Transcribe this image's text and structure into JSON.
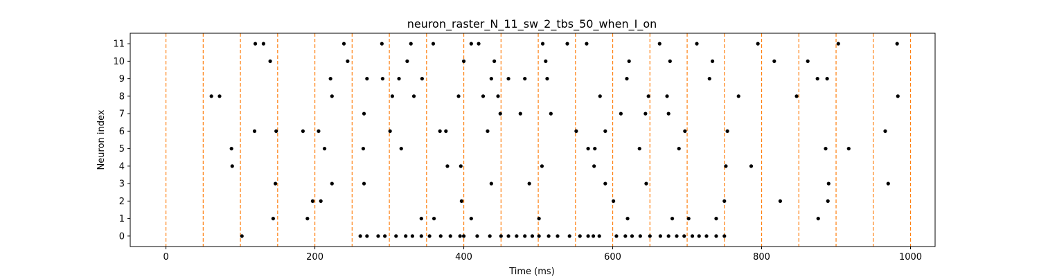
{
  "chart_data": {
    "type": "scatter",
    "title": "neuron_raster_N_11_sw_2_tbs_50_when_I_on",
    "xlabel": "Time (ms)",
    "ylabel": "Neuron index",
    "xlim": [
      -48,
      1033
    ],
    "ylim": [
      -0.6,
      11.6
    ],
    "x_ticks": [
      0,
      200,
      400,
      600,
      800,
      1000
    ],
    "y_ticks": [
      0,
      1,
      2,
      3,
      4,
      5,
      6,
      7,
      8,
      9,
      10,
      11
    ],
    "grid": false,
    "legend": "none",
    "marker_color": "#000000",
    "vline_color": "#ff7f0e",
    "stim_lines_ms": [
      0,
      50,
      100,
      150,
      200,
      250,
      300,
      350,
      400,
      450,
      500,
      550,
      600,
      650,
      700,
      750,
      800,
      850,
      900,
      950,
      1000
    ],
    "spikes": [
      {
        "neuron": 0,
        "times": [
          102,
          261,
          270,
          285,
          294,
          309,
          322,
          331,
          343,
          354,
          369,
          382,
          395,
          400,
          418,
          435,
          450,
          460,
          471,
          482,
          492,
          501,
          514,
          526,
          542,
          556,
          567,
          574,
          582,
          605,
          617,
          626,
          637,
          650,
          664,
          675,
          686,
          696,
          707,
          716,
          726,
          739,
          750
        ]
      },
      {
        "neuron": 1,
        "times": [
          144,
          190,
          343,
          360,
          410,
          501,
          620,
          680,
          702,
          739,
          876
        ]
      },
      {
        "neuron": 2,
        "times": [
          197,
          208,
          397,
          601,
          750,
          825,
          889
        ]
      },
      {
        "neuron": 3,
        "times": [
          147,
          223,
          266,
          437,
          488,
          590,
          645,
          890,
          970
        ]
      },
      {
        "neuron": 4,
        "times": [
          89,
          378,
          396,
          505,
          575,
          752,
          786
        ]
      },
      {
        "neuron": 5,
        "times": [
          88,
          213,
          265,
          316,
          567,
          576,
          636,
          689,
          886,
          917
        ]
      },
      {
        "neuron": 6,
        "times": [
          119,
          148,
          184,
          205,
          301,
          368,
          376,
          432,
          551,
          590,
          697,
          754,
          966
        ]
      },
      {
        "neuron": 7,
        "times": [
          266,
          449,
          476,
          517,
          611,
          644,
          675
        ]
      },
      {
        "neuron": 8,
        "times": [
          61,
          72,
          223,
          304,
          333,
          393,
          426,
          446,
          583,
          648,
          673,
          769,
          847,
          983
        ]
      },
      {
        "neuron": 9,
        "times": [
          221,
          270,
          291,
          313,
          344,
          437,
          460,
          482,
          512,
          619,
          730,
          875,
          888
        ]
      },
      {
        "neuron": 10,
        "times": [
          140,
          244,
          324,
          400,
          441,
          510,
          622,
          677,
          734,
          817,
          862
        ]
      },
      {
        "neuron": 11,
        "times": [
          120,
          131,
          239,
          290,
          329,
          359,
          410,
          420,
          506,
          539,
          565,
          663,
          713,
          795,
          903,
          982
        ]
      }
    ]
  }
}
